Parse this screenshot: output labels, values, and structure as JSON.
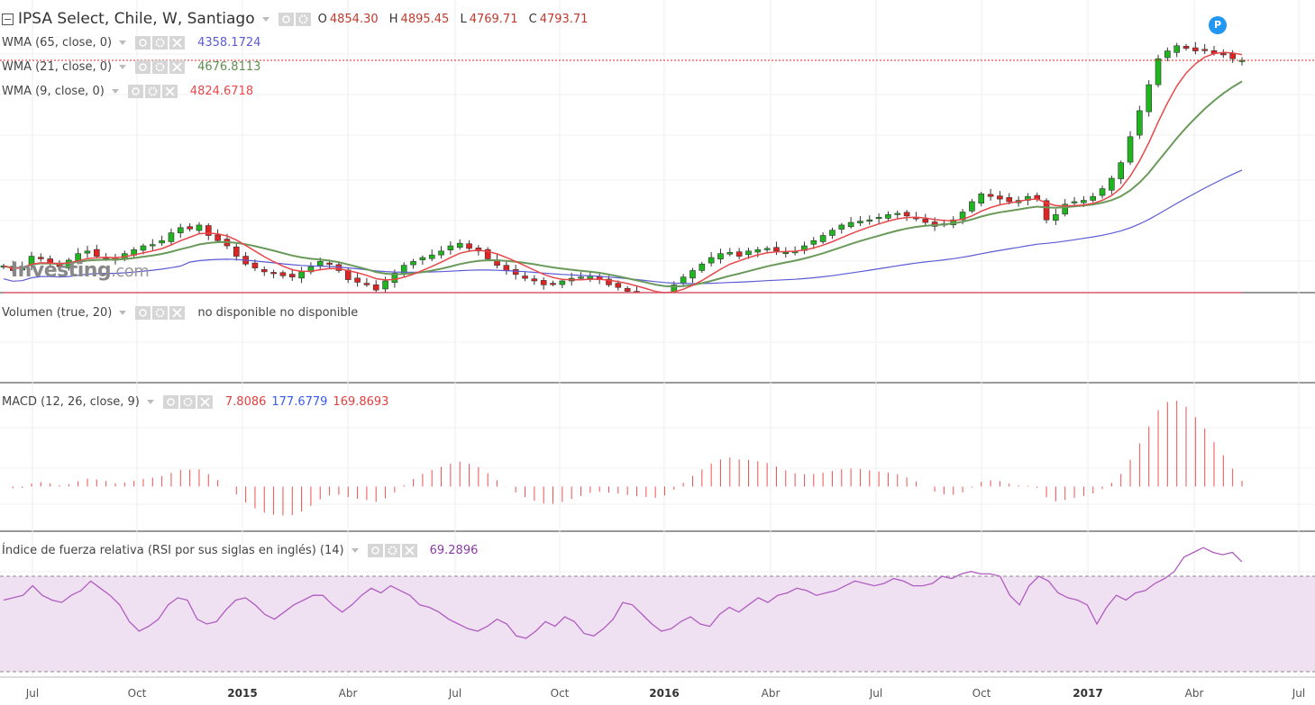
{
  "colors": {
    "up": "#1fb51f",
    "down": "#e02424",
    "wma65": "#5b5bd6",
    "wma21": "#6a9a5a",
    "wma9": "#e8474a",
    "macd": "#3b5bf0",
    "signal": "#f05050",
    "rsi": "#b05cc0",
    "rsi_band": "#efe1f2"
  },
  "header": {
    "title": "IPSA Select, Chile, W, Santiago",
    "ohlc": [
      {
        "k": "O",
        "v": "4854.30"
      },
      {
        "k": "H",
        "v": "4895.45"
      },
      {
        "k": "L",
        "v": "4769.71"
      },
      {
        "k": "C",
        "v": "4793.71"
      }
    ]
  },
  "indicators": {
    "wma65": {
      "label": "WMA (65, close, 0)",
      "value": "4358.1724"
    },
    "wma21": {
      "label": "WMA (21, close, 0)",
      "value": "4676.8113"
    },
    "wma9": {
      "label": "WMA (9, close, 0)",
      "value": "4824.6718"
    },
    "volume": {
      "label": "Volumen (true, 20)",
      "value": "no disponible no disponible"
    },
    "macd": {
      "label": "MACD (12, 26, close, 9)",
      "v1": "7.8086",
      "v2": "177.6779",
      "v3": "169.8693"
    },
    "rsi": {
      "label": "Índice de fuerza relativa (RSI por sus siglas en inglés) (14)",
      "value": "69.2896"
    }
  },
  "watermark": {
    "brand": "Investing",
    "suffix": ".com"
  },
  "badge": "P",
  "x_axis": [
    {
      "label": "Jul",
      "bold": false
    },
    {
      "label": "Oct",
      "bold": false
    },
    {
      "label": "2015",
      "bold": true
    },
    {
      "label": "Abr",
      "bold": false
    },
    {
      "label": "Jul",
      "bold": false
    },
    {
      "label": "Oct",
      "bold": false
    },
    {
      "label": "2016",
      "bold": true
    },
    {
      "label": "Abr",
      "bold": false
    },
    {
      "label": "Jul",
      "bold": false
    },
    {
      "label": "Oct",
      "bold": false
    },
    {
      "label": "2017",
      "bold": true
    },
    {
      "label": "Abr",
      "bold": false
    },
    {
      "label": "Jul",
      "bold": false
    }
  ],
  "chart_data": {
    "type": "line",
    "title": "IPSA Select, Chile, W, Santiago",
    "xlabel": "",
    "ylabel": "",
    "price_last": 4793.71,
    "weekly_close": [
      4003,
      3985,
      4000,
      4040,
      4030,
      4010,
      4000,
      4025,
      4050,
      4060,
      4040,
      4035,
      4025,
      4050,
      4065,
      4080,
      4085,
      4100,
      4130,
      4150,
      4145,
      4160,
      4120,
      4100,
      4080,
      4040,
      4010,
      3995,
      3980,
      3975,
      3965,
      3960,
      3980,
      4000,
      4020,
      4010,
      3985,
      3950,
      3940,
      3930,
      3910,
      3945,
      3975,
      4005,
      4020,
      4035,
      4045,
      4060,
      4080,
      4090,
      4070,
      4060,
      4030,
      4005,
      3985,
      3970,
      3955,
      3945,
      3930,
      3935,
      3945,
      3955,
      3960,
      3965,
      3950,
      3930,
      3920,
      3905,
      3895,
      3885,
      3875,
      3895,
      3930,
      3960,
      3985,
      4010,
      4035,
      4050,
      4055,
      4040,
      4060,
      4065,
      4070,
      4060,
      4055,
      4060,
      4080,
      4100,
      4120,
      4140,
      4160,
      4170,
      4175,
      4180,
      4190,
      4200,
      4205,
      4195,
      4185,
      4170,
      4155,
      4165,
      4180,
      4210,
      4250,
      4280,
      4270,
      4260,
      4250,
      4255,
      4270,
      4260,
      4180,
      4200,
      4240,
      4250,
      4255,
      4270,
      4300,
      4340,
      4400,
      4500,
      4600,
      4700,
      4800,
      4830,
      4850,
      4840,
      4830,
      4835,
      4820,
      4815,
      4800,
      4794
    ],
    "wma65_last": 4358.1724,
    "wma21_last": 4676.8113,
    "wma9_last": 4824.6718,
    "macd_last": {
      "hist": 7.8086,
      "macd": 177.6779,
      "signal": 169.8693
    },
    "rsi": [
      60,
      61,
      62,
      66,
      62,
      60,
      59,
      62,
      64,
      68,
      65,
      62,
      58,
      51,
      47,
      49,
      52,
      58,
      61,
      60,
      52,
      50,
      51,
      56,
      60,
      61,
      58,
      54,
      52,
      55,
      58,
      60,
      62,
      62,
      58,
      55,
      58,
      62,
      65,
      63,
      66,
      64,
      62,
      58,
      57,
      55,
      52,
      50,
      48,
      47,
      49,
      52,
      50,
      45,
      44,
      47,
      51,
      49,
      53,
      51,
      46,
      45,
      48,
      52,
      59,
      58,
      54,
      50,
      47,
      48,
      51,
      53,
      50,
      49,
      54,
      57,
      55,
      58,
      61,
      59,
      62,
      63,
      65,
      64,
      62,
      63,
      64,
      66,
      68,
      67,
      66,
      67,
      69,
      68,
      66,
      66,
      67,
      70,
      69,
      71,
      72,
      71,
      71,
      70,
      62,
      58,
      66,
      70,
      68,
      63,
      61,
      60,
      58,
      50,
      57,
      62,
      60,
      63,
      64,
      67,
      69,
      72,
      78,
      80,
      82,
      80,
      79,
      80,
      76
    ],
    "rsi_levels": [
      70,
      30
    ]
  }
}
